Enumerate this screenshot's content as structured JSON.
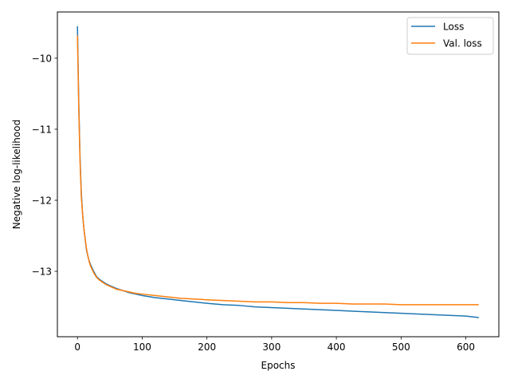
{
  "chart_data": {
    "type": "line",
    "title": "",
    "xlabel": "Epochs",
    "ylabel": "Negative log-likelihood",
    "xlim": [
      -31,
      651
    ],
    "ylim": [
      -13.92,
      -9.35
    ],
    "xticks": [
      0,
      100,
      200,
      300,
      400,
      500,
      600
    ],
    "xtick_labels": [
      "0",
      "100",
      "200",
      "300",
      "400",
      "500",
      "600"
    ],
    "yticks": [
      -10,
      -11,
      -12,
      -13
    ],
    "ytick_labels": [
      "−10",
      "−11",
      "−12",
      "−13"
    ],
    "grid": false,
    "legend_position": "upper right",
    "series": [
      {
        "name": "Loss",
        "color": "#1f77b4",
        "x": [
          0,
          2,
          4,
          6,
          8,
          10,
          12,
          14,
          16,
          18,
          20,
          25,
          30,
          35,
          40,
          45,
          50,
          60,
          70,
          80,
          90,
          100,
          120,
          140,
          160,
          180,
          200,
          225,
          250,
          275,
          300,
          325,
          350,
          375,
          400,
          425,
          450,
          475,
          500,
          525,
          550,
          575,
          600,
          620
        ],
        "y": [
          -9.55,
          -10.6,
          -11.4,
          -11.9,
          -12.2,
          -12.4,
          -12.55,
          -12.7,
          -12.78,
          -12.85,
          -12.9,
          -13.0,
          -13.08,
          -13.12,
          -13.15,
          -13.18,
          -13.2,
          -13.24,
          -13.27,
          -13.3,
          -13.32,
          -13.34,
          -13.37,
          -13.39,
          -13.41,
          -13.43,
          -13.45,
          -13.47,
          -13.48,
          -13.5,
          -13.51,
          -13.52,
          -13.53,
          -13.54,
          -13.55,
          -13.56,
          -13.57,
          -13.58,
          -13.59,
          -13.6,
          -13.61,
          -13.62,
          -13.63,
          -13.65
        ]
      },
      {
        "name": "Val. loss",
        "color": "#ff7f0e",
        "x": [
          0,
          2,
          4,
          6,
          8,
          10,
          12,
          14,
          16,
          18,
          20,
          25,
          30,
          35,
          40,
          45,
          50,
          60,
          70,
          80,
          90,
          100,
          120,
          140,
          160,
          180,
          200,
          225,
          250,
          275,
          300,
          325,
          350,
          375,
          400,
          425,
          450,
          475,
          500,
          525,
          550,
          575,
          600,
          620
        ],
        "y": [
          -9.68,
          -10.7,
          -11.45,
          -11.95,
          -12.2,
          -12.4,
          -12.55,
          -12.68,
          -12.78,
          -12.86,
          -12.92,
          -13.02,
          -13.09,
          -13.13,
          -13.16,
          -13.19,
          -13.21,
          -13.25,
          -13.27,
          -13.29,
          -13.31,
          -13.32,
          -13.34,
          -13.36,
          -13.38,
          -13.39,
          -13.4,
          -13.41,
          -13.42,
          -13.43,
          -13.43,
          -13.44,
          -13.44,
          -13.45,
          -13.45,
          -13.46,
          -13.46,
          -13.46,
          -13.47,
          -13.47,
          -13.47,
          -13.47,
          -13.47,
          -13.47
        ]
      }
    ]
  }
}
